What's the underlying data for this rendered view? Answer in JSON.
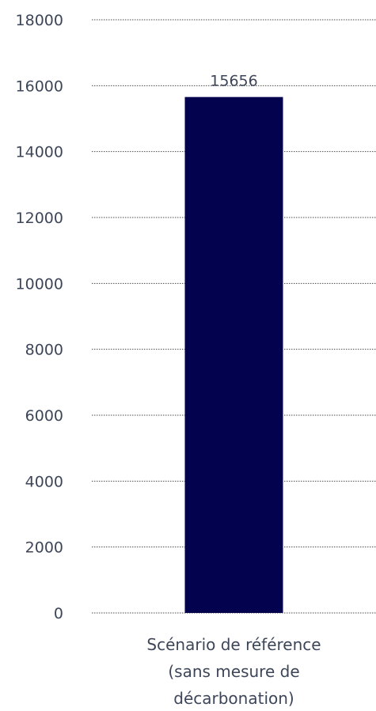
{
  "chart_data": {
    "type": "bar",
    "title": "",
    "xlabel": "",
    "ylabel": "",
    "categories": [
      [
        "Scénario de référence",
        "(sans mesure de",
        "décarbonation)"
      ]
    ],
    "values": [
      15656
    ],
    "data_labels": [
      "15656"
    ],
    "y_ticks": [
      "0",
      "2000",
      "4000",
      "6000",
      "8000",
      "10000",
      "12000",
      "14000",
      "16000",
      "18000"
    ],
    "y_tick_values": [
      0,
      2000,
      4000,
      6000,
      8000,
      10000,
      12000,
      14000,
      16000,
      18000
    ],
    "ylim": [
      0,
      18000
    ],
    "grid": true,
    "legend": "none",
    "colors": {
      "bar": "#02024f",
      "text": "#3d4659",
      "grid": "#4a4a4a"
    }
  }
}
